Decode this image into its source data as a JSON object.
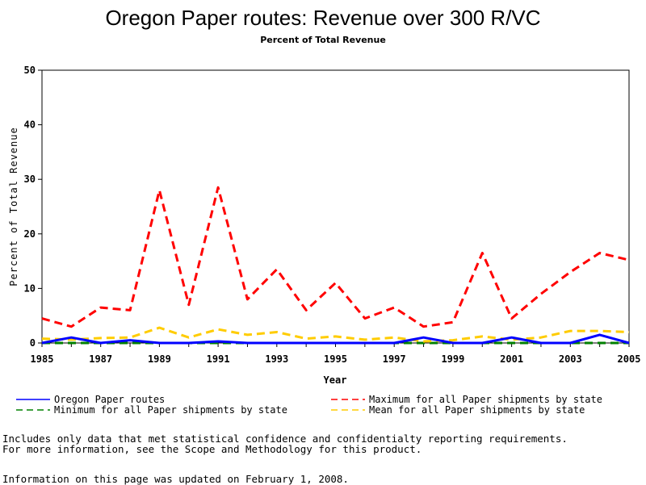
{
  "chart_data": {
    "type": "line",
    "title": "Oregon Paper routes: Revenue over 300 R/VC",
    "subtitle": "Percent of Total Revenue",
    "xlabel": "Year",
    "ylabel": "Percent of Total Revenue",
    "xlim": [
      1985,
      2005
    ],
    "ylim": [
      0,
      50
    ],
    "x_ticks": [
      1985,
      1987,
      1989,
      1991,
      1993,
      1995,
      1997,
      1999,
      2001,
      2003,
      2005
    ],
    "y_ticks": [
      0,
      10,
      20,
      30,
      40,
      50
    ],
    "grid": false,
    "legend_position": "bottom",
    "x": [
      1985,
      1986,
      1987,
      1988,
      1989,
      1990,
      1991,
      1992,
      1993,
      1994,
      1995,
      1996,
      1997,
      1998,
      1999,
      2000,
      2001,
      2002,
      2003,
      2004,
      2005
    ],
    "series": [
      {
        "name": "Oregon Paper routes",
        "color": "#0000ff",
        "dash": "solid",
        "values": [
          0,
          1.0,
          0,
          0.5,
          0,
          0,
          0.3,
          0,
          0,
          0,
          0,
          0,
          0,
          1.0,
          0,
          0,
          1.0,
          0,
          0,
          1.5,
          0
        ]
      },
      {
        "name": "Maximum for all Paper shipments by state",
        "color": "#ff0000",
        "dash": "dashed",
        "values": [
          4.5,
          3,
          6.5,
          6,
          28,
          7,
          28.5,
          8,
          13.5,
          6,
          11,
          4.5,
          6.5,
          3,
          3.8,
          16.5,
          4.5,
          9,
          13,
          16.5,
          15.2
        ]
      },
      {
        "name": "Minimum for all Paper shipments by state",
        "color": "#008000",
        "dash": "dashed",
        "values": [
          0,
          0,
          0,
          0,
          0,
          0,
          0,
          0,
          0,
          0,
          0,
          0,
          0,
          0,
          0,
          0,
          0,
          0,
          0,
          0,
          0
        ]
      },
      {
        "name": "Mean for all Paper shipments by state",
        "color": "#ffcc00",
        "dash": "dashed",
        "values": [
          0.8,
          0.6,
          0.9,
          1.0,
          2.8,
          1.0,
          2.5,
          1.5,
          2.0,
          0.8,
          1.2,
          0.6,
          1.0,
          0.3,
          0.5,
          1.2,
          0.6,
          1.0,
          2.2,
          2.2,
          2.0
        ]
      }
    ]
  },
  "notes": {
    "line1": "Includes only data that met statistical confidence and confidentialty reporting requirements.",
    "line2": "For more information, see the Scope and Methodology for this product.",
    "updated": "Information on this page was updated on February 1, 2008."
  }
}
